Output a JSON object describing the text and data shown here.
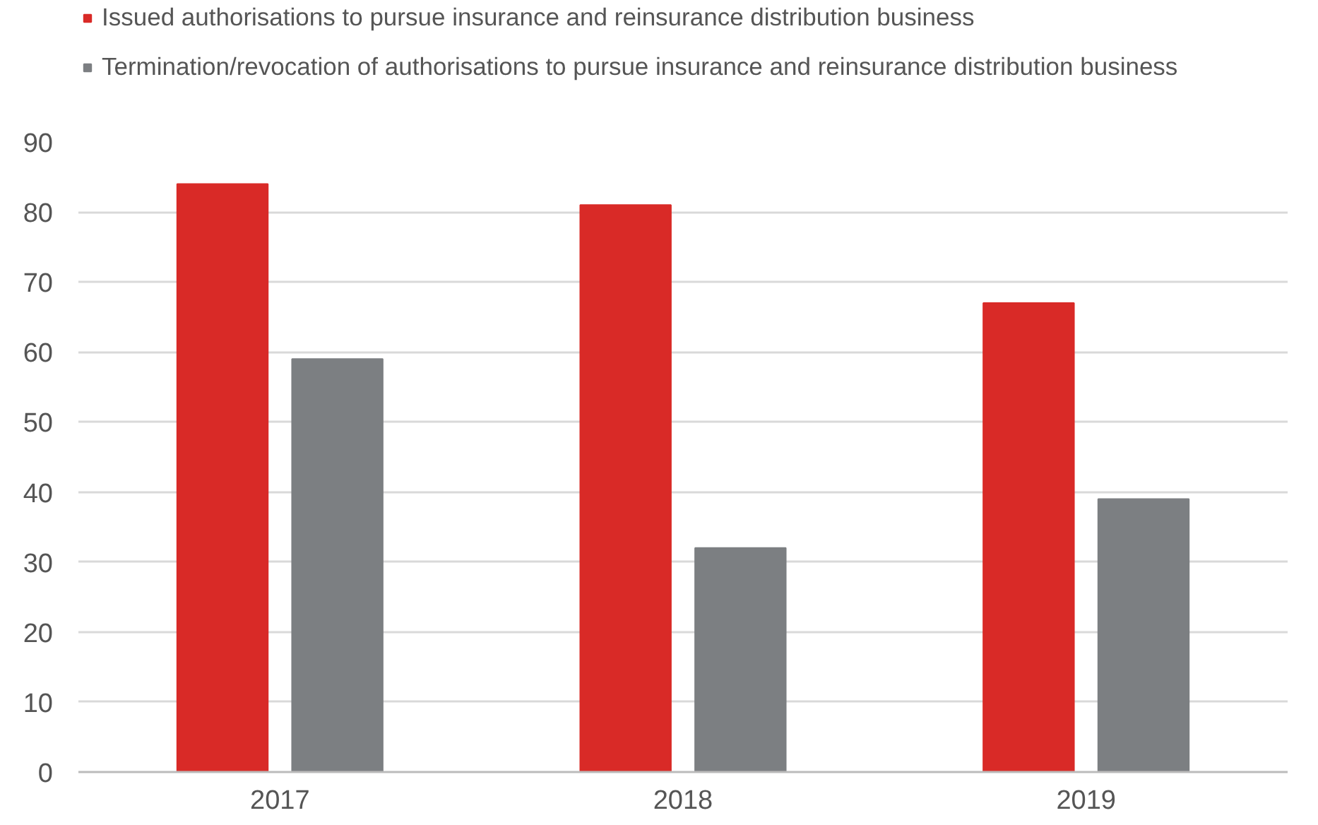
{
  "chart_data": {
    "type": "bar",
    "categories": [
      "2017",
      "2018",
      "2019"
    ],
    "series": [
      {
        "name": "Issued authorisations to pursue insurance and reinsurance distribution business",
        "color": "#d92a27",
        "values": [
          84,
          81,
          67
        ]
      },
      {
        "name": "Termination/revocation of authorisations to pursue insurance and reinsurance distribution business",
        "color": "#7c7f82",
        "values": [
          59,
          32,
          39
        ]
      }
    ],
    "ylim": [
      0,
      90
    ],
    "yticks": [
      0,
      10,
      20,
      30,
      40,
      50,
      60,
      70,
      80,
      90
    ],
    "grid": "y",
    "legend": "top left"
  }
}
